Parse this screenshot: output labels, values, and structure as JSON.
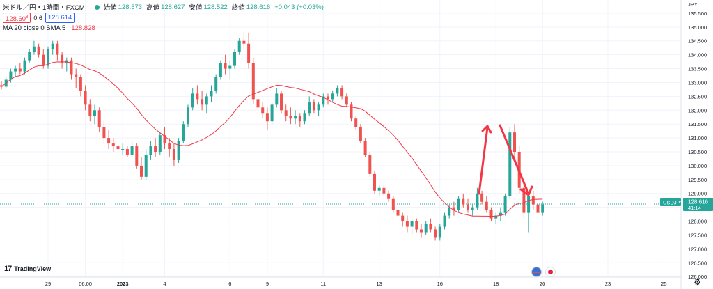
{
  "header": {
    "symbol": "米ドル／円・1時間・FXCM",
    "open_label": "始値",
    "open": "128.573",
    "high_label": "高値",
    "high": "128.627",
    "low_label": "安値",
    "low": "128.522",
    "close_label": "終値",
    "close": "128.616",
    "change": "+0.043 (+0.03%)",
    "bid": "128.60",
    "bid_suffix": "8",
    "spread": "0.6",
    "ask": "128.614",
    "ma_label": "MA 20 close 0 SMA 5",
    "ma_value": "128.828"
  },
  "logo": {
    "text": "TradingView",
    "mark": "17"
  },
  "colors": {
    "up": "#26a69a",
    "down": "#ef5350",
    "ma": "#f23645",
    "arrow": "#f23645",
    "ask": "#2962ff",
    "price_line": "#26a69a"
  },
  "icons": [
    "us-flag-icon",
    "japan-flag-icon",
    "gear-icon",
    "tradingview-logo-icon"
  ],
  "chart_data": {
    "type": "candlestick",
    "currency": "JPY",
    "ylim": [
      125.98,
      135.9
    ],
    "y_ticks": [
      "135.500",
      "135.000",
      "134.500",
      "134.000",
      "133.500",
      "133.000",
      "132.500",
      "132.000",
      "131.500",
      "131.000",
      "130.500",
      "130.000",
      "129.500",
      "129.000",
      "128.500",
      "128.000",
      "127.500",
      "127.000",
      "126.500",
      "126.000"
    ],
    "x_ticks": [
      "29",
      "06:00",
      "2023",
      "4",
      "6",
      "9",
      "11",
      "13",
      "16",
      "18",
      "20",
      "23",
      "25"
    ],
    "x_tick_index": [
      10,
      18,
      26,
      35,
      49,
      57,
      69,
      81,
      94,
      106,
      116,
      130,
      142
    ],
    "last_price": {
      "symbol": "USDJPY",
      "price": "128.616",
      "countdown": "41:14"
    },
    "ohlc": [
      [
        132.9,
        133.05,
        132.75,
        132.85
      ],
      [
        132.85,
        133.2,
        132.8,
        133.1
      ],
      [
        133.1,
        133.5,
        133.0,
        133.4
      ],
      [
        133.4,
        133.6,
        133.2,
        133.5
      ],
      [
        133.5,
        133.7,
        133.3,
        133.4
      ],
      [
        133.4,
        133.9,
        133.3,
        133.8
      ],
      [
        133.8,
        134.2,
        133.7,
        134.1
      ],
      [
        134.1,
        134.5,
        134.0,
        134.3
      ],
      [
        134.3,
        134.4,
        133.9,
        134.0
      ],
      [
        134.0,
        134.2,
        133.5,
        133.6
      ],
      [
        133.6,
        134.3,
        133.5,
        134.2
      ],
      [
        134.2,
        134.5,
        134.0,
        134.4
      ],
      [
        134.4,
        134.5,
        133.8,
        134.0
      ],
      [
        134.0,
        134.1,
        133.5,
        133.7
      ],
      [
        133.7,
        133.9,
        133.4,
        133.8
      ],
      [
        133.8,
        133.9,
        133.1,
        133.3
      ],
      [
        133.3,
        133.5,
        132.8,
        133.2
      ],
      [
        133.2,
        133.3,
        132.5,
        132.7
      ],
      [
        132.7,
        132.9,
        132.0,
        132.2
      ],
      [
        132.2,
        132.4,
        131.6,
        131.8
      ],
      [
        131.8,
        132.2,
        131.5,
        132.0
      ],
      [
        132.0,
        132.1,
        131.2,
        131.4
      ],
      [
        131.4,
        131.6,
        130.8,
        131.0
      ],
      [
        131.0,
        131.3,
        130.6,
        130.8
      ],
      [
        130.8,
        131.0,
        130.5,
        130.7
      ],
      [
        130.7,
        130.9,
        130.5,
        130.6
      ],
      [
        130.6,
        130.8,
        130.4,
        130.6
      ],
      [
        130.6,
        130.7,
        130.3,
        130.4
      ],
      [
        130.4,
        130.9,
        130.3,
        130.7
      ],
      [
        130.7,
        130.8,
        129.9,
        130.0
      ],
      [
        130.0,
        130.3,
        129.5,
        129.6
      ],
      [
        129.6,
        130.6,
        129.5,
        130.4
      ],
      [
        130.4,
        130.9,
        130.2,
        130.7
      ],
      [
        130.7,
        131.0,
        130.3,
        130.5
      ],
      [
        130.5,
        131.2,
        130.4,
        131.1
      ],
      [
        131.1,
        131.4,
        130.6,
        130.8
      ],
      [
        130.8,
        131.0,
        130.3,
        130.6
      ],
      [
        130.6,
        130.8,
        130.0,
        130.2
      ],
      [
        130.2,
        131.0,
        130.1,
        130.9
      ],
      [
        130.9,
        131.6,
        130.8,
        131.5
      ],
      [
        131.5,
        132.2,
        131.4,
        132.1
      ],
      [
        132.1,
        132.8,
        132.0,
        132.6
      ],
      [
        132.6,
        132.9,
        132.2,
        132.4
      ],
      [
        132.4,
        132.7,
        132.0,
        132.2
      ],
      [
        132.2,
        132.6,
        131.9,
        132.5
      ],
      [
        132.5,
        132.9,
        132.3,
        132.7
      ],
      [
        132.7,
        133.3,
        132.6,
        133.2
      ],
      [
        133.2,
        133.8,
        133.1,
        133.7
      ],
      [
        133.7,
        134.0,
        133.3,
        133.5
      ],
      [
        133.5,
        133.8,
        133.1,
        133.6
      ],
      [
        133.6,
        134.2,
        133.5,
        134.1
      ],
      [
        134.1,
        134.6,
        134.0,
        134.5
      ],
      [
        134.5,
        134.8,
        134.2,
        134.4
      ],
      [
        134.4,
        134.8,
        133.5,
        133.7
      ],
      [
        133.7,
        133.9,
        132.2,
        132.4
      ],
      [
        132.4,
        132.6,
        131.9,
        132.1
      ],
      [
        132.1,
        132.3,
        131.7,
        131.9
      ],
      [
        131.9,
        132.1,
        131.3,
        131.6
      ],
      [
        131.6,
        132.3,
        131.5,
        132.2
      ],
      [
        132.2,
        132.8,
        132.1,
        132.6
      ],
      [
        132.6,
        132.7,
        131.9,
        132.0
      ],
      [
        132.0,
        132.2,
        131.6,
        131.8
      ],
      [
        131.8,
        132.1,
        131.5,
        131.7
      ],
      [
        131.7,
        132.0,
        131.5,
        131.8
      ],
      [
        131.8,
        131.9,
        131.4,
        131.6
      ],
      [
        131.6,
        132.0,
        131.5,
        131.9
      ],
      [
        131.9,
        132.5,
        131.8,
        132.3
      ],
      [
        132.3,
        132.4,
        131.9,
        132.0
      ],
      [
        132.0,
        132.3,
        131.8,
        132.2
      ],
      [
        132.2,
        132.6,
        132.1,
        132.5
      ],
      [
        132.5,
        132.6,
        132.2,
        132.4
      ],
      [
        132.4,
        132.7,
        132.3,
        132.6
      ],
      [
        132.6,
        132.9,
        132.5,
        132.8
      ],
      [
        132.8,
        132.9,
        132.4,
        132.5
      ],
      [
        132.5,
        132.6,
        132.1,
        132.2
      ],
      [
        132.2,
        132.3,
        131.6,
        131.7
      ],
      [
        131.7,
        131.8,
        131.3,
        131.4
      ],
      [
        131.4,
        131.5,
        130.8,
        130.9
      ],
      [
        130.9,
        131.0,
        130.3,
        130.4
      ],
      [
        130.4,
        130.5,
        129.6,
        129.7
      ],
      [
        129.7,
        129.8,
        129.0,
        129.1
      ],
      [
        129.1,
        129.3,
        128.9,
        129.2
      ],
      [
        129.2,
        129.3,
        128.9,
        129.0
      ],
      [
        129.0,
        129.1,
        128.7,
        128.8
      ],
      [
        128.8,
        128.9,
        128.3,
        128.4
      ],
      [
        128.4,
        128.5,
        128.0,
        128.2
      ],
      [
        128.2,
        128.3,
        127.8,
        128.0
      ],
      [
        128.0,
        128.2,
        127.6,
        127.8
      ],
      [
        127.8,
        128.1,
        127.5,
        128.0
      ],
      [
        128.0,
        128.1,
        127.6,
        127.7
      ],
      [
        127.7,
        127.9,
        127.4,
        127.6
      ],
      [
        127.6,
        128.0,
        127.5,
        127.9
      ],
      [
        127.9,
        128.1,
        127.6,
        127.7
      ],
      [
        127.7,
        127.8,
        127.3,
        127.4
      ],
      [
        127.4,
        127.9,
        127.3,
        127.8
      ],
      [
        127.8,
        128.3,
        127.7,
        128.2
      ],
      [
        128.2,
        128.6,
        128.1,
        128.5
      ],
      [
        128.5,
        128.7,
        128.2,
        128.4
      ],
      [
        128.4,
        128.9,
        128.3,
        128.8
      ],
      [
        128.8,
        129.0,
        128.5,
        128.6
      ],
      [
        128.6,
        128.8,
        128.3,
        128.4
      ],
      [
        128.4,
        128.6,
        128.2,
        128.5
      ],
      [
        128.5,
        129.2,
        128.4,
        129.0
      ],
      [
        129.0,
        129.1,
        128.6,
        128.7
      ],
      [
        128.7,
        128.9,
        128.3,
        128.4
      ],
      [
        128.4,
        128.5,
        128.0,
        128.1
      ],
      [
        128.1,
        128.3,
        127.9,
        128.2
      ],
      [
        128.2,
        128.5,
        128.0,
        128.3
      ],
      [
        128.3,
        129.0,
        128.2,
        128.9
      ],
      [
        128.9,
        131.4,
        128.8,
        131.2
      ],
      [
        131.2,
        131.5,
        130.3,
        130.5
      ],
      [
        130.5,
        130.7,
        129.0,
        129.2
      ],
      [
        129.2,
        129.4,
        128.1,
        128.3
      ],
      [
        128.3,
        129.0,
        127.6,
        128.9
      ],
      [
        128.9,
        129.1,
        128.4,
        128.6
      ],
      [
        128.6,
        128.8,
        128.2,
        128.3
      ],
      [
        128.3,
        128.7,
        128.2,
        128.6
      ]
    ],
    "ma_period": 20,
    "annotation": "red arrow pointing up then down at the 18 spike"
  }
}
